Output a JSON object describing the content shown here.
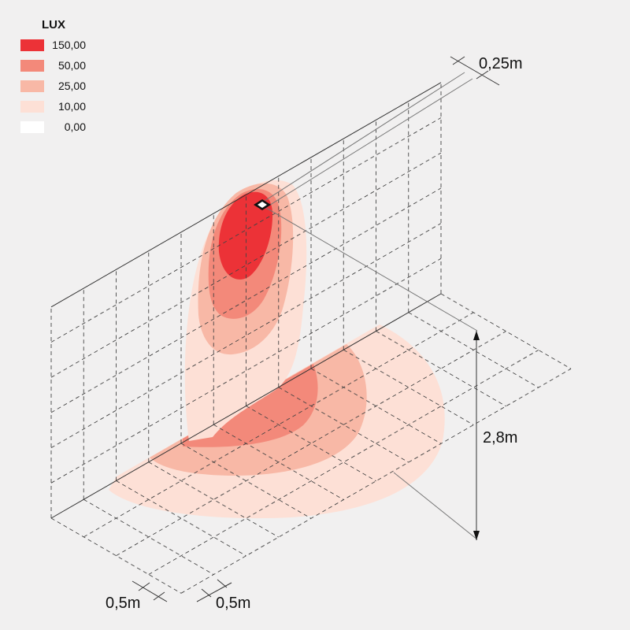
{
  "legend": {
    "title": "LUX",
    "items": [
      {
        "label": "150,00",
        "color": "#ec3237"
      },
      {
        "label": "50,00",
        "color": "#f3897a"
      },
      {
        "label": "25,00",
        "color": "#f8b8a6"
      },
      {
        "label": "10,00",
        "color": "#fde0d6"
      },
      {
        "label": "0,00",
        "color": "#ffffff"
      }
    ]
  },
  "dimensions": {
    "luminaire_depth": "0,25m",
    "height": "2,8m",
    "floor_grid_a": "0,5m",
    "floor_grid_b": "0,5m"
  }
}
